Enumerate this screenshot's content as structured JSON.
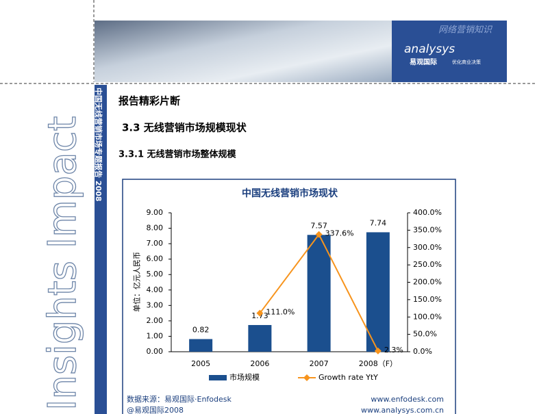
{
  "header": {
    "banner": "网络营销知识",
    "brand": "analysys",
    "brand_cn": "易观国际",
    "slogan": "优化商业决策"
  },
  "sidebar": {
    "title": "Insights Impact",
    "report": "中国无线营销市场专题报告 2008"
  },
  "heading": "报告精彩片断",
  "section": "3.3 无线营销市场规模现状",
  "subsection": "3.3.1 无线营销市场整体规模",
  "chart_data": {
    "type": "bar",
    "title": "中国无线营销市场现状",
    "y_label": "单位：亿元人民币",
    "categories": [
      "2005",
      "2006",
      "2007",
      "2008（F）"
    ],
    "series": [
      {
        "name": "市场规模",
        "type": "bar",
        "color": "#1b4f8e",
        "values": [
          0.82,
          1.73,
          7.57,
          7.74
        ]
      },
      {
        "name": "Growth rate YtY",
        "type": "line",
        "color": "#f7941d",
        "axis": "y2",
        "values": [
          null,
          111.0,
          337.6,
          2.3
        ],
        "value_labels": [
          null,
          "111.0%",
          "337.6%",
          "2.3%"
        ]
      }
    ],
    "ylim": [
      0,
      9
    ],
    "yticks": [
      {
        "value": 0,
        "label": "0.00"
      },
      {
        "value": 1,
        "label": "1.00"
      },
      {
        "value": 2,
        "label": "2.00"
      },
      {
        "value": 3,
        "label": "3.00"
      },
      {
        "value": 4,
        "label": "4.00"
      },
      {
        "value": 5,
        "label": "5.00"
      },
      {
        "value": 6,
        "label": "6.00"
      },
      {
        "value": 7,
        "label": "7.00"
      },
      {
        "value": 8,
        "label": "8.00"
      },
      {
        "value": 9,
        "label": "9.00"
      }
    ],
    "y2lim": [
      0,
      400
    ],
    "y2ticks": [
      {
        "value": 0,
        "label": "0.0%"
      },
      {
        "value": 50,
        "label": "50.0%"
      },
      {
        "value": 100,
        "label": "100.0%"
      },
      {
        "value": 150,
        "label": "150.0%"
      },
      {
        "value": 200,
        "label": "200.0%"
      },
      {
        "value": 250,
        "label": "250.0%"
      },
      {
        "value": 300,
        "label": "300.0%"
      },
      {
        "value": 350,
        "label": "350.0%"
      },
      {
        "value": 400,
        "label": "400.0%"
      }
    ],
    "legend": "bottom"
  },
  "footer": {
    "source": "数据来源：易观国际·Enfodesk",
    "copyright": "@易观国际2008",
    "url1": "www.enfodesk.com",
    "url2": "www.analysys.com.cn"
  }
}
